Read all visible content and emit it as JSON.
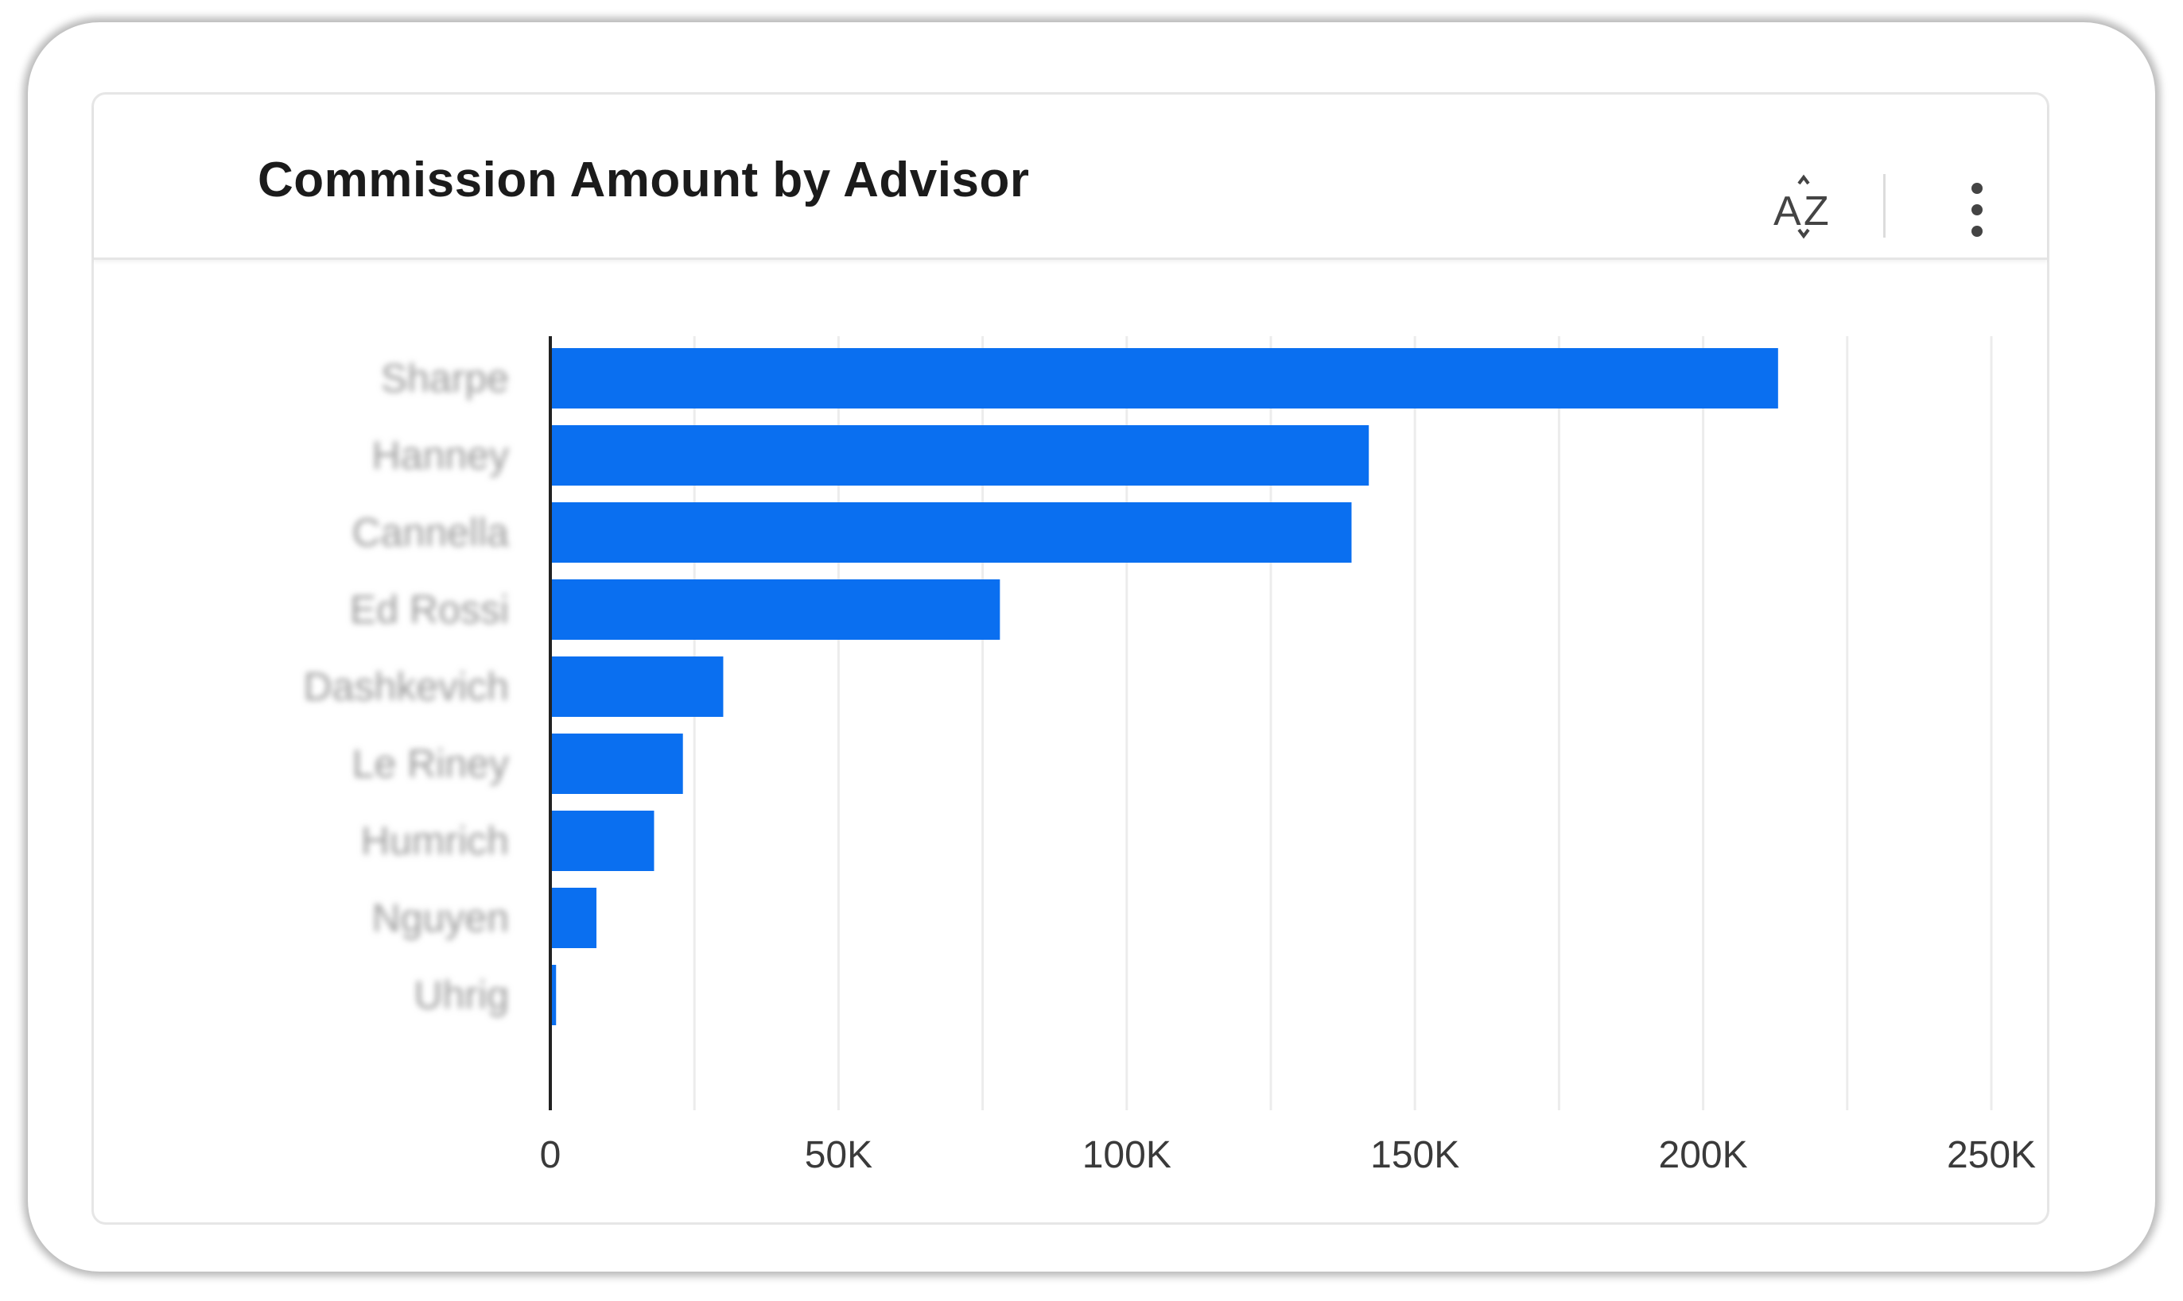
{
  "card": {
    "title": "Commission Amount by Advisor",
    "sort_icon": "sort-az-icon",
    "menu_icon": "more-vertical-icon"
  },
  "colors": {
    "bar": "#0a6ff0",
    "grid": "#ececec",
    "axis": "#222222",
    "tick_text": "#3a3a3a",
    "category_text": "#9a9a9a"
  },
  "chart_data": {
    "type": "bar",
    "orientation": "horizontal",
    "title": "Commission Amount by Advisor",
    "categories": [
      "Sharpe",
      "Hanney",
      "Cannella",
      "Ed Rossi",
      "Dashkevich",
      "Le Riney",
      "Humrich",
      "Nguyen",
      "Uhrig"
    ],
    "values": [
      213000,
      142000,
      139000,
      78000,
      30000,
      23000,
      18000,
      8000,
      1000
    ],
    "xlim": [
      0,
      250000
    ],
    "xticks": [
      0,
      50000,
      100000,
      150000,
      200000,
      250000
    ],
    "xtick_labels": [
      "0",
      "50K",
      "100K",
      "150K",
      "200K",
      "250K"
    ],
    "xlabel": "",
    "ylabel": "",
    "grid": true,
    "category_labels_blurred": true
  }
}
